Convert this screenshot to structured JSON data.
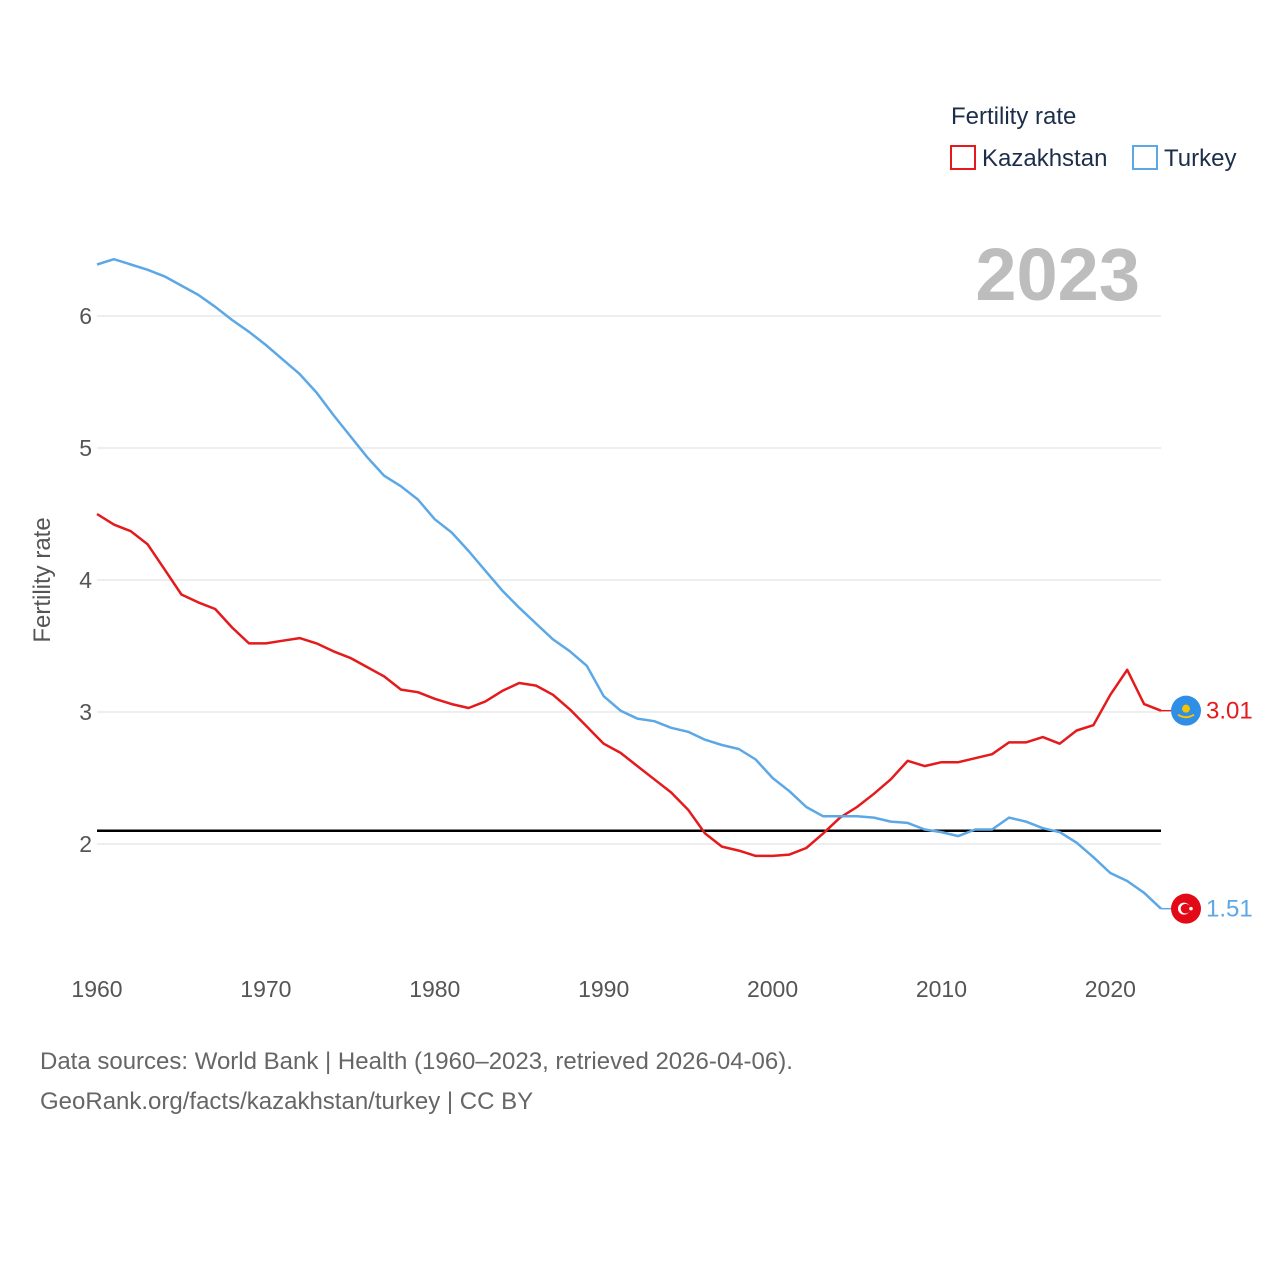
{
  "chart_data": {
    "type": "line",
    "title": "Fertility rate",
    "ylabel": "Fertility rate",
    "xlabel": "",
    "current_year_label": "2023",
    "xlim": [
      1960,
      2023
    ],
    "ylim": [
      1.5,
      6.5
    ],
    "x_ticks": [
      1960,
      1970,
      1980,
      1990,
      2000,
      2010,
      2020
    ],
    "y_ticks": [
      2,
      3,
      4,
      5,
      6
    ],
    "reference_line": {
      "value": 2.1,
      "color": "#000000"
    },
    "legend": {
      "title": "Fertility rate",
      "position": "top-right"
    },
    "x": [
      1960,
      1961,
      1962,
      1963,
      1964,
      1965,
      1966,
      1967,
      1968,
      1969,
      1970,
      1971,
      1972,
      1973,
      1974,
      1975,
      1976,
      1977,
      1978,
      1979,
      1980,
      1981,
      1982,
      1983,
      1984,
      1985,
      1986,
      1987,
      1988,
      1989,
      1990,
      1991,
      1992,
      1993,
      1994,
      1995,
      1996,
      1997,
      1998,
      1999,
      2000,
      2001,
      2002,
      2003,
      2004,
      2005,
      2006,
      2007,
      2008,
      2009,
      2010,
      2011,
      2012,
      2013,
      2014,
      2015,
      2016,
      2017,
      2018,
      2019,
      2020,
      2021,
      2022,
      2023
    ],
    "series": [
      {
        "name": "Kazakhstan",
        "color": "#e41a1c",
        "end_label": "3.01",
        "flag": "kazakhstan-flag-icon",
        "values": [
          4.5,
          4.42,
          4.37,
          4.27,
          4.08,
          3.89,
          3.83,
          3.78,
          3.64,
          3.52,
          3.52,
          3.54,
          3.56,
          3.52,
          3.46,
          3.41,
          3.34,
          3.27,
          3.17,
          3.15,
          3.1,
          3.06,
          3.03,
          3.08,
          3.16,
          3.22,
          3.2,
          3.13,
          3.02,
          2.89,
          2.76,
          2.69,
          2.59,
          2.49,
          2.39,
          2.26,
          2.08,
          1.98,
          1.95,
          1.91,
          1.91,
          1.92,
          1.97,
          2.08,
          2.2,
          2.28,
          2.38,
          2.49,
          2.63,
          2.59,
          2.62,
          2.62,
          2.65,
          2.68,
          2.77,
          2.77,
          2.81,
          2.76,
          2.86,
          2.9,
          3.13,
          3.32,
          3.06,
          3.01
        ]
      },
      {
        "name": "Turkey",
        "color": "#5ca8e6",
        "end_label": "1.51",
        "flag": "turkey-flag-icon",
        "values": [
          6.39,
          6.43,
          6.39,
          6.35,
          6.3,
          6.23,
          6.16,
          6.07,
          5.97,
          5.88,
          5.78,
          5.67,
          5.56,
          5.42,
          5.25,
          5.09,
          4.93,
          4.79,
          4.71,
          4.61,
          4.46,
          4.36,
          4.22,
          4.07,
          3.92,
          3.79,
          3.67,
          3.55,
          3.46,
          3.35,
          3.12,
          3.01,
          2.95,
          2.93,
          2.88,
          2.85,
          2.79,
          2.75,
          2.72,
          2.64,
          2.5,
          2.4,
          2.28,
          2.21,
          2.21,
          2.21,
          2.2,
          2.17,
          2.16,
          2.11,
          2.09,
          2.06,
          2.11,
          2.11,
          2.2,
          2.17,
          2.12,
          2.09,
          2.01,
          1.9,
          1.78,
          1.72,
          1.63,
          1.51
        ]
      }
    ]
  },
  "footer": {
    "line1": "Data sources: World Bank | Health (1960–2023, retrieved 2026-04-06).",
    "line2": "GeoRank.org/facts/kazakhstan/turkey | CC BY"
  }
}
